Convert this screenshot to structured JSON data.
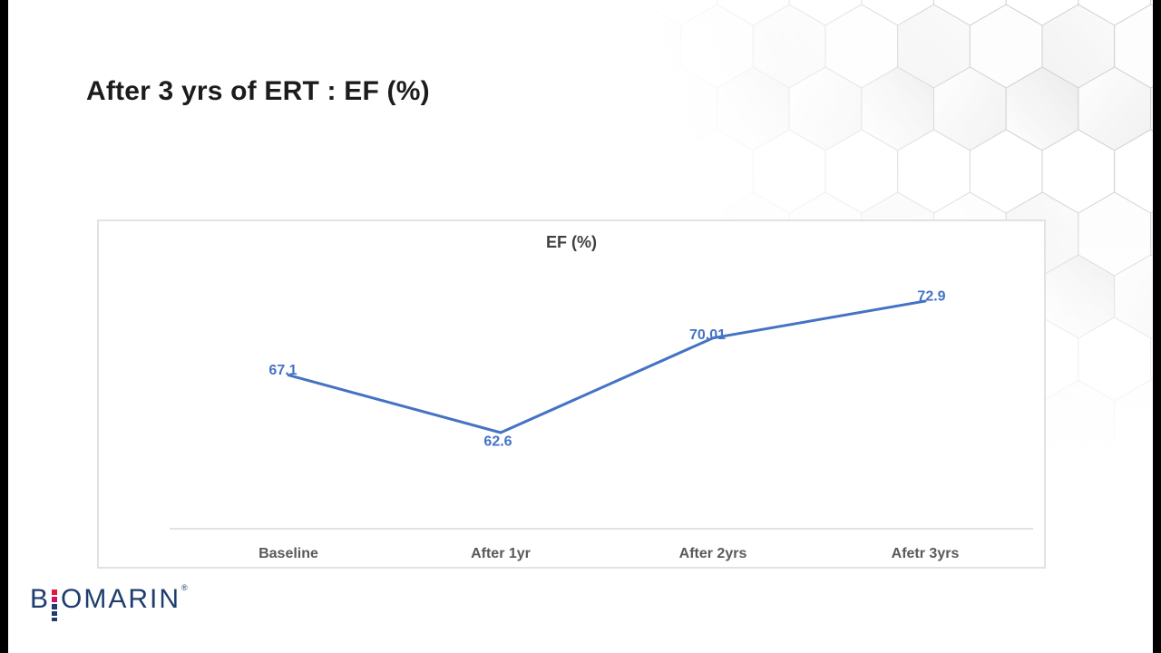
{
  "slide": {
    "title": "After 3 yrs of ERT : EF (%)"
  },
  "chart_data": {
    "type": "line",
    "title": "EF (%)",
    "categories": [
      "Baseline",
      "After 1yr",
      "After 2yrs",
      "Afetr 3yrs"
    ],
    "series": [
      {
        "name": "EF (%)",
        "values": [
          67.1,
          62.6,
          70.01,
          72.9
        ]
      }
    ],
    "data_labels": [
      "67.1",
      "62.6",
      "70.01",
      "72.9"
    ],
    "xlabel": "",
    "ylabel": "",
    "y_axis": "hidden",
    "gridlines": "off",
    "legend": "none",
    "line_color": "#4472C4",
    "label_color": "#4472C4",
    "axis_line_color": "#D9D9D9",
    "tick_label_color": "#595959",
    "title_color": "#404040"
  },
  "logo": {
    "part1": "B",
    "part2": "OMARIN",
    "registered": "®",
    "text_color": "#1E3D6E",
    "dot_colors": [
      "#E31837",
      "#C9106B",
      "#1E3D6E",
      "#1E3D6E",
      "#1E3D6E"
    ]
  }
}
